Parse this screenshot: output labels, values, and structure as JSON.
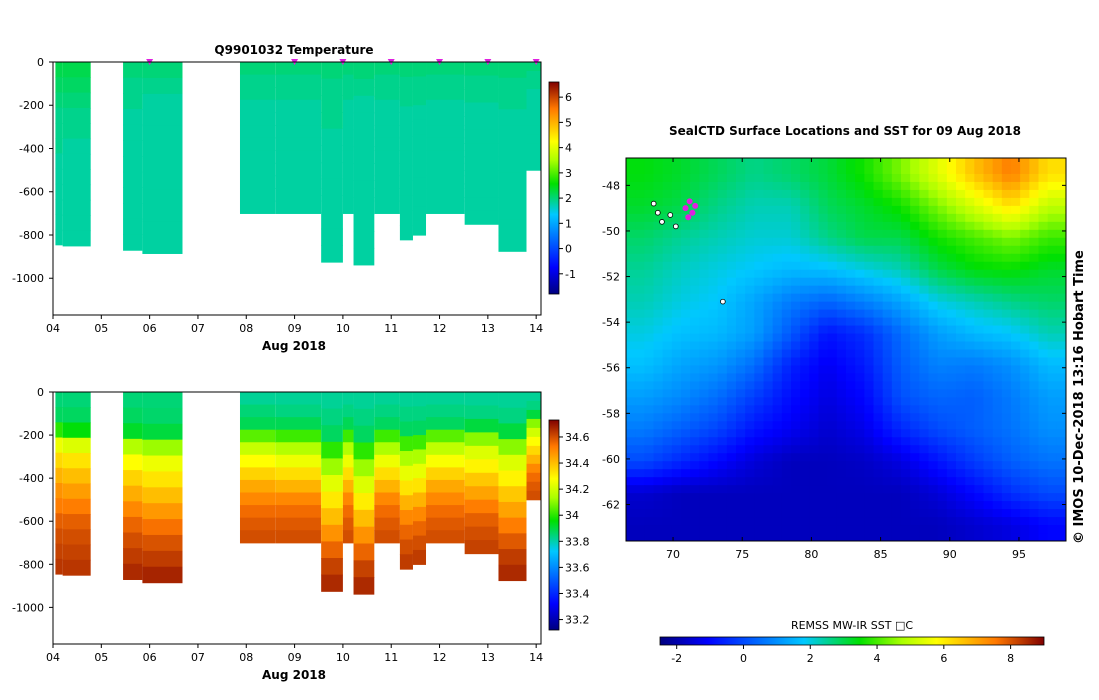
{
  "chart_data": [
    {
      "type": "heatmap",
      "title": "Q9901032  Temperature",
      "xlabel": "Aug 2018",
      "ylabel": "",
      "x_ticks": [
        "04",
        "05",
        "06",
        "07",
        "08",
        "09",
        "10",
        "11",
        "12",
        "13",
        "14"
      ],
      "x_range_days": [
        4,
        14.1
      ],
      "y_ticks": [
        0,
        -200,
        -400,
        -600,
        -800,
        -1000
      ],
      "ylim": [
        -1170,
        0
      ],
      "colorbar": {
        "ticks": [
          6,
          5,
          4,
          3,
          2,
          1,
          0,
          -1
        ],
        "range": [
          -1.8,
          6.6
        ]
      },
      "profile_markers_days": [
        6,
        9,
        10,
        11,
        12,
        13,
        14
      ],
      "profiles": [
        {
          "day_start": 4.05,
          "day_end": 4.2,
          "max_depth": 845,
          "values": [
            2.2,
            2.1,
            2.0,
            1.9,
            1.9,
            1.9,
            1.8,
            1.8,
            1.8,
            1.8,
            1.8,
            1.8
          ]
        },
        {
          "day_start": 4.2,
          "day_end": 4.78,
          "max_depth": 850,
          "values": [
            2.2,
            2.1,
            2.0,
            1.9,
            1.9,
            1.8,
            1.8,
            1.8,
            1.8,
            1.8,
            1.8,
            1.8
          ]
        },
        {
          "day_start": 5.45,
          "day_end": 5.85,
          "max_depth": 870,
          "values": [
            2.0,
            1.9,
            1.9,
            1.8,
            1.8,
            1.8,
            1.8,
            1.8,
            1.8,
            1.8,
            1.8,
            1.8
          ]
        },
        {
          "day_start": 5.85,
          "day_end": 6.68,
          "max_depth": 885,
          "values": [
            2.0,
            1.9,
            1.8,
            1.8,
            1.8,
            1.8,
            1.8,
            1.8,
            1.8,
            1.8,
            1.8,
            1.8
          ]
        },
        {
          "day_start": 7.87,
          "day_end": 8.6,
          "max_depth": 700,
          "values": [
            2.0,
            1.9,
            1.9,
            1.8,
            1.8,
            1.8,
            1.8,
            1.8,
            1.8,
            1.8,
            1.8,
            1.8
          ]
        },
        {
          "day_start": 8.6,
          "day_end": 9.55,
          "max_depth": 700,
          "values": [
            2.0,
            1.9,
            1.9,
            1.8,
            1.8,
            1.8,
            1.8,
            1.8,
            1.8,
            1.8,
            1.8,
            1.8
          ]
        },
        {
          "day_start": 9.55,
          "day_end": 10.0,
          "max_depth": 925,
          "values": [
            2.0,
            1.9,
            1.9,
            1.9,
            1.8,
            1.8,
            1.8,
            1.8,
            1.8,
            1.8,
            1.8,
            1.8
          ]
        },
        {
          "day_start": 10.0,
          "day_end": 10.22,
          "max_depth": 700,
          "values": [
            2.0,
            1.9,
            1.9,
            1.8,
            1.8,
            1.8,
            1.8,
            1.8,
            1.8,
            1.8,
            1.8,
            1.8
          ]
        },
        {
          "day_start": 10.22,
          "day_end": 10.65,
          "max_depth": 938,
          "values": [
            2.0,
            1.9,
            1.8,
            1.8,
            1.8,
            1.8,
            1.8,
            1.8,
            1.8,
            1.8,
            1.8,
            1.8
          ]
        },
        {
          "day_start": 10.65,
          "day_end": 11.18,
          "max_depth": 700,
          "values": [
            2.0,
            1.9,
            1.9,
            1.8,
            1.8,
            1.8,
            1.8,
            1.8,
            1.8,
            1.8,
            1.8,
            1.8
          ]
        },
        {
          "day_start": 11.18,
          "day_end": 11.45,
          "max_depth": 822,
          "values": [
            2.0,
            1.9,
            1.9,
            1.8,
            1.8,
            1.8,
            1.8,
            1.8,
            1.8,
            1.8,
            1.8,
            1.8
          ]
        },
        {
          "day_start": 11.45,
          "day_end": 11.72,
          "max_depth": 800,
          "values": [
            2.0,
            1.9,
            1.9,
            1.8,
            1.8,
            1.8,
            1.8,
            1.8,
            1.8,
            1.8,
            1.8,
            1.8
          ]
        },
        {
          "day_start": 11.72,
          "day_end": 12.52,
          "max_depth": 700,
          "values": [
            2.0,
            1.9,
            1.9,
            1.8,
            1.8,
            1.8,
            1.8,
            1.8,
            1.8,
            1.8,
            1.8,
            1.8
          ]
        },
        {
          "day_start": 12.52,
          "day_end": 13.22,
          "max_depth": 750,
          "values": [
            2.0,
            1.9,
            1.9,
            1.8,
            1.8,
            1.8,
            1.8,
            1.8,
            1.8,
            1.8,
            1.8,
            1.8
          ]
        },
        {
          "day_start": 13.22,
          "day_end": 13.8,
          "max_depth": 875,
          "values": [
            2.0,
            1.9,
            1.9,
            1.8,
            1.8,
            1.8,
            1.8,
            1.8,
            1.8,
            1.8,
            1.8,
            1.8
          ]
        },
        {
          "day_start": 13.8,
          "day_end": 14.1,
          "max_depth": 500,
          "values": [
            2.0,
            1.9,
            1.9,
            1.8,
            1.8,
            1.8,
            1.8,
            1.8,
            1.8,
            1.8,
            1.8,
            1.8
          ]
        }
      ]
    },
    {
      "type": "heatmap",
      "title": "",
      "xlabel": "Aug 2018",
      "ylabel": "",
      "x_ticks": [
        "04",
        "05",
        "06",
        "07",
        "08",
        "09",
        "10",
        "11",
        "12",
        "13",
        "14"
      ],
      "x_range_days": [
        4,
        14.1
      ],
      "y_ticks": [
        0,
        -200,
        -400,
        -600,
        -800,
        -1000
      ],
      "ylim": [
        -1170,
        0
      ],
      "colorbar": {
        "ticks": [
          "34.6",
          "34.4",
          "34.2",
          "34",
          "33.8",
          "33.6",
          "33.4",
          "33.2"
        ],
        "range": [
          33.12,
          34.73
        ]
      },
      "profiles": [
        {
          "day_start": 4.05,
          "day_end": 4.2,
          "max_depth": 845,
          "values": [
            33.85,
            33.87,
            34.0,
            34.25,
            34.35,
            34.42,
            34.48,
            34.52,
            34.57,
            34.6,
            34.62,
            34.64
          ]
        },
        {
          "day_start": 4.2,
          "day_end": 4.78,
          "max_depth": 850,
          "values": [
            33.85,
            33.87,
            33.95,
            34.22,
            34.33,
            34.4,
            34.46,
            34.52,
            34.57,
            34.6,
            34.62,
            34.64
          ]
        },
        {
          "day_start": 5.45,
          "day_end": 5.85,
          "max_depth": 870,
          "values": [
            33.85,
            33.87,
            33.92,
            34.15,
            34.28,
            34.36,
            34.43,
            34.5,
            34.56,
            34.6,
            34.63,
            34.66
          ]
        },
        {
          "day_start": 5.85,
          "day_end": 6.68,
          "max_depth": 885,
          "values": [
            33.85,
            33.86,
            33.9,
            34.12,
            34.25,
            34.33,
            34.4,
            34.47,
            34.54,
            34.59,
            34.63,
            34.67
          ]
        },
        {
          "day_start": 7.87,
          "day_end": 8.6,
          "max_depth": 700,
          "values": [
            33.82,
            33.85,
            33.88,
            34.05,
            34.18,
            34.28,
            34.36,
            34.44,
            34.5,
            34.55,
            34.58,
            34.6
          ]
        },
        {
          "day_start": 8.6,
          "day_end": 9.55,
          "max_depth": 700,
          "values": [
            33.82,
            33.84,
            33.88,
            34.02,
            34.15,
            34.25,
            34.34,
            34.42,
            34.5,
            34.55,
            34.58,
            34.6
          ]
        },
        {
          "day_start": 9.55,
          "day_end": 10.0,
          "max_depth": 925,
          "values": [
            33.82,
            33.84,
            33.87,
            34.0,
            34.12,
            34.23,
            34.32,
            34.4,
            34.48,
            34.56,
            34.62,
            34.66
          ]
        },
        {
          "day_start": 10.0,
          "day_end": 10.22,
          "max_depth": 700,
          "values": [
            33.82,
            33.84,
            33.88,
            34.02,
            34.15,
            34.25,
            34.34,
            34.42,
            34.5,
            34.55,
            34.58,
            34.6
          ]
        },
        {
          "day_start": 10.22,
          "day_end": 10.65,
          "max_depth": 938,
          "values": [
            33.82,
            33.84,
            33.87,
            34.0,
            34.12,
            34.22,
            34.31,
            34.4,
            34.48,
            34.56,
            34.62,
            34.66
          ]
        },
        {
          "day_start": 10.65,
          "day_end": 11.18,
          "max_depth": 700,
          "values": [
            33.82,
            33.84,
            33.87,
            34.02,
            34.14,
            34.25,
            34.34,
            34.42,
            34.5,
            34.55,
            34.58,
            34.6
          ]
        },
        {
          "day_start": 11.18,
          "day_end": 11.45,
          "max_depth": 822,
          "values": [
            33.82,
            33.84,
            33.87,
            34.02,
            34.14,
            34.24,
            34.33,
            34.42,
            34.5,
            34.56,
            34.6,
            34.63
          ]
        },
        {
          "day_start": 11.45,
          "day_end": 11.72,
          "max_depth": 800,
          "values": [
            33.82,
            33.84,
            33.87,
            34.02,
            34.14,
            34.24,
            34.33,
            34.42,
            34.5,
            34.56,
            34.6,
            34.63
          ]
        },
        {
          "day_start": 11.72,
          "day_end": 12.52,
          "max_depth": 700,
          "values": [
            33.82,
            33.84,
            33.87,
            34.05,
            34.17,
            34.27,
            34.36,
            34.44,
            34.5,
            34.55,
            34.58,
            34.6
          ]
        },
        {
          "day_start": 12.52,
          "day_end": 13.22,
          "max_depth": 750,
          "values": [
            33.82,
            33.84,
            33.9,
            34.1,
            34.22,
            34.3,
            34.38,
            34.45,
            34.52,
            34.57,
            34.6,
            34.62
          ]
        },
        {
          "day_start": 13.22,
          "day_end": 13.8,
          "max_depth": 875,
          "values": [
            33.82,
            33.84,
            33.9,
            34.1,
            34.22,
            34.3,
            34.38,
            34.45,
            34.52,
            34.58,
            34.63,
            34.66
          ]
        },
        {
          "day_start": 13.8,
          "day_end": 14.1,
          "max_depth": 500,
          "values": [
            33.82,
            33.84,
            33.9,
            34.1,
            34.2,
            34.28,
            34.35,
            34.42,
            34.5,
            34.55,
            34.58,
            34.6
          ]
        }
      ]
    },
    {
      "type": "heatmap",
      "title": "SealCTD Surface Locations and SST for 09 Aug 2018",
      "xlabel": "",
      "ylabel": "",
      "x_ticks": [
        70,
        75,
        80,
        85,
        90,
        95
      ],
      "xlim": [
        66.6,
        98.4
      ],
      "y_ticks": [
        -48,
        -50,
        -52,
        -54,
        -56,
        -58,
        -60,
        -62
      ],
      "ylim": [
        -63.6,
        -46.8
      ],
      "colorbar": {
        "label": "REMSS MW-IR SST □C",
        "ticks": [
          -2,
          0,
          2,
          4,
          6,
          8
        ],
        "range": [
          -2.5,
          9.0
        ]
      },
      "grid_values": [
        [
          3.4,
          3.2,
          2.9,
          2.6,
          2.8,
          3.1,
          3.6,
          4.4,
          5.4,
          6.6,
          7.5,
          6.2
        ],
        [
          3.2,
          3.0,
          2.6,
          2.3,
          2.3,
          2.9,
          3.2,
          3.6,
          4.4,
          5.3,
          6.2,
          5.0
        ],
        [
          2.8,
          2.5,
          2.3,
          2.1,
          2.1,
          2.6,
          3.0,
          3.0,
          3.6,
          4.0,
          4.4,
          3.9
        ],
        [
          2.5,
          2.2,
          2.0,
          1.8,
          1.6,
          1.7,
          2.0,
          2.3,
          3.0,
          3.4,
          3.5,
          3.2
        ],
        [
          2.3,
          2.0,
          1.8,
          1.3,
          0.7,
          0.4,
          0.8,
          1.3,
          2.0,
          2.3,
          2.6,
          2.8
        ],
        [
          2.0,
          1.7,
          1.6,
          1.2,
          0.2,
          -0.8,
          -0.4,
          0.5,
          1.2,
          1.6,
          1.8,
          2.3
        ],
        [
          1.7,
          1.3,
          1.1,
          0.5,
          -0.6,
          -1.2,
          -0.7,
          0.3,
          0.8,
          0.7,
          1.0,
          1.6
        ],
        [
          1.2,
          0.9,
          0.5,
          -0.2,
          -0.9,
          -1.4,
          -1.0,
          0.1,
          0.4,
          0.3,
          0.7,
          1.2
        ],
        [
          0.7,
          0.3,
          -0.1,
          -0.8,
          -1.2,
          -1.6,
          -1.3,
          -0.5,
          0.0,
          0.3,
          0.6,
          1.0
        ],
        [
          0.0,
          -0.5,
          -1.0,
          -1.5,
          -1.8,
          -1.8,
          -1.7,
          -1.4,
          -0.8,
          -0.2,
          0.3,
          0.6
        ],
        [
          -1.6,
          -1.8,
          -1.8,
          -1.8,
          -1.8,
          -1.8,
          -1.8,
          -1.8,
          -1.5,
          -1.0,
          -0.4,
          0.0
        ],
        [
          -1.8,
          -1.8,
          -1.8,
          -1.8,
          -1.8,
          -1.8,
          -1.8,
          -1.8,
          -1.8,
          -1.6,
          -1.4,
          -1.0
        ]
      ],
      "seal_locations_magenta": [
        [
          70.9,
          -49.0
        ],
        [
          71.2,
          -48.7
        ],
        [
          71.4,
          -49.2
        ],
        [
          71.6,
          -48.9
        ],
        [
          71.1,
          -49.4
        ]
      ],
      "station_markers": [
        [
          68.6,
          -48.8
        ],
        [
          69.2,
          -49.6
        ],
        [
          69.8,
          -49.3
        ],
        [
          70.2,
          -49.8
        ],
        [
          68.9,
          -49.2
        ],
        [
          73.6,
          -53.1
        ]
      ],
      "side_text": "©  IMOS 10-Dec-2018 13:16 Hobart Time"
    }
  ]
}
